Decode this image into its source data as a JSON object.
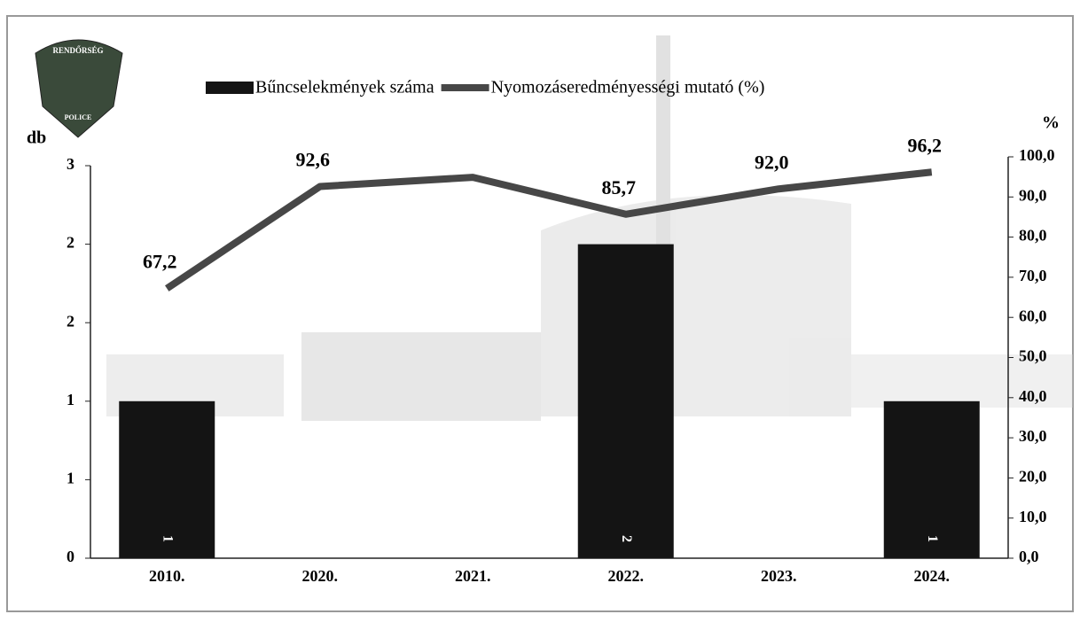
{
  "logo": {
    "top": "RENDŐRSÉG",
    "bottom": "POLICE"
  },
  "chart_data": {
    "type": "bar-line",
    "categories": [
      "2010.",
      "2020.",
      "2021.",
      "2022.",
      "2023.",
      "2024."
    ],
    "ylabel": "db",
    "y2label": "%",
    "ylim": [
      0,
      2.5
    ],
    "yticks": [
      0,
      {
        "value": 0.5,
        "label": "1"
      },
      1,
      {
        "value": 1.5,
        "label": "2"
      },
      2,
      {
        "value": 2.5,
        "label": "3"
      }
    ],
    "y2lim": [
      0,
      100
    ],
    "y2ticks": [
      {
        "value": 0,
        "label": "0,0"
      },
      {
        "value": 10,
        "label": "10,0"
      },
      {
        "value": 20,
        "label": "20,0"
      },
      {
        "value": 30,
        "label": "30,0"
      },
      {
        "value": 40,
        "label": "40,0"
      },
      {
        "value": 50,
        "label": "50,0"
      },
      {
        "value": 60,
        "label": "60,0"
      },
      {
        "value": 70,
        "label": "70,0"
      },
      {
        "value": 80,
        "label": "80,0"
      },
      {
        "value": 90,
        "label": "90,0"
      },
      {
        "value": 100,
        "label": "100,0"
      }
    ],
    "series": [
      {
        "name": "Bűncselekmények száma",
        "type": "bar",
        "color": "#141414",
        "values": [
          1,
          null,
          null,
          2,
          null,
          1
        ]
      },
      {
        "name": "Nyomozáseredményességi mutató (%)",
        "type": "line",
        "axis": "y2",
        "color": "#474747",
        "values": [
          67.2,
          92.6,
          94.9,
          85.7,
          92.0,
          96.2
        ],
        "value_labels": [
          "67,2",
          "92,6",
          null,
          "85,7",
          "92,0",
          "96,2"
        ]
      }
    ]
  }
}
